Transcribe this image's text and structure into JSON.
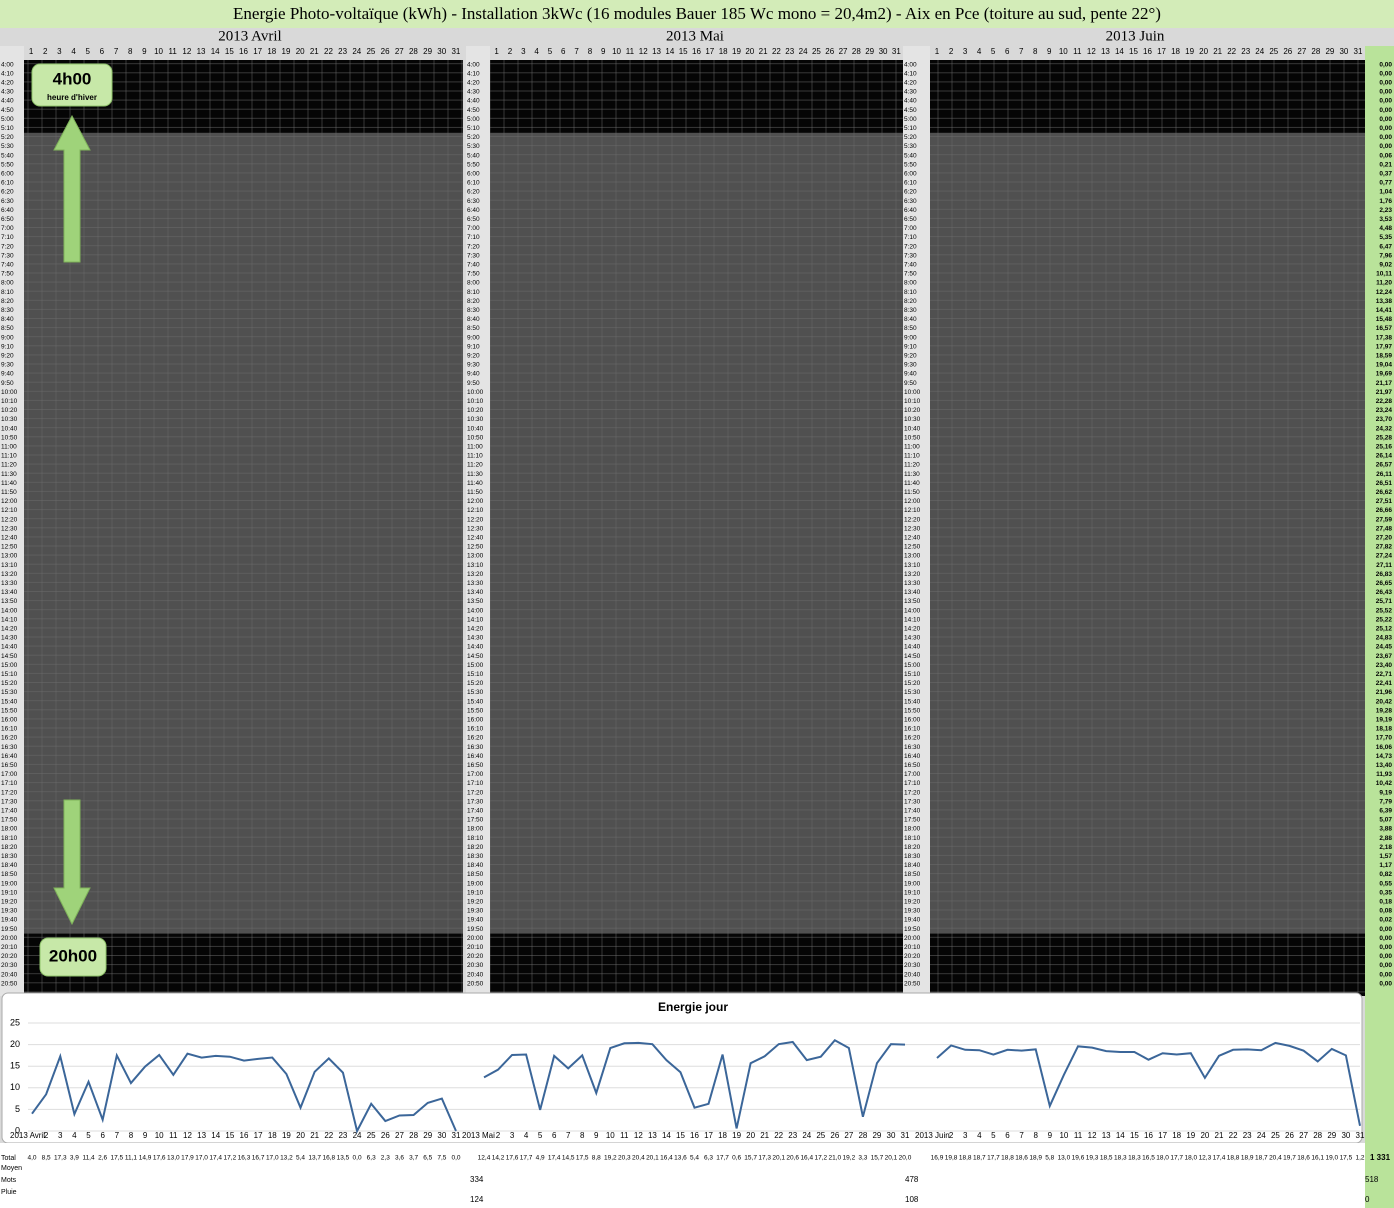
{
  "header": {
    "title": "Energie Photo-voltaïque (kWh) - Installation 3kWc (16 modules Bauer 185 Wc mono = 20,4m2) - Aix en Pce (toiture au sud, pente 22°)"
  },
  "grid": {
    "months": [
      "2013 Avril",
      "2013 Mai",
      "2013 Juin"
    ],
    "days": [
      1,
      2,
      3,
      4,
      5,
      6,
      7,
      8,
      9,
      10,
      11,
      12,
      13,
      14,
      15,
      16,
      17,
      18,
      19,
      20,
      21,
      22,
      23,
      24,
      25,
      26,
      27,
      28,
      29,
      30,
      31
    ],
    "times": [
      "4:00",
      "4:10",
      "4:20",
      "4:30",
      "4:40",
      "4:50",
      "5:00",
      "5:10",
      "5:20",
      "5:30",
      "5:40",
      "5:50",
      "6:00",
      "6:10",
      "6:20",
      "6:30",
      "6:40",
      "6:50",
      "7:00",
      "7:10",
      "7:20",
      "7:30",
      "7:40",
      "7:50",
      "8:00",
      "8:10",
      "8:20",
      "8:30",
      "8:40",
      "8:50",
      "9:00",
      "9:10",
      "9:20",
      "9:30",
      "9:40",
      "9:50",
      "10:00",
      "10:10",
      "10:20",
      "10:30",
      "10:40",
      "10:50",
      "11:00",
      "11:10",
      "11:20",
      "11:30",
      "11:40",
      "11:50",
      "12:00",
      "12:10",
      "12:20",
      "12:30",
      "12:40",
      "12:50",
      "13:00",
      "13:10",
      "13:20",
      "13:30",
      "13:40",
      "13:50",
      "14:00",
      "14:10",
      "14:20",
      "14:30",
      "14:40",
      "14:50",
      "15:00",
      "15:10",
      "15:20",
      "15:30",
      "15:40",
      "15:50",
      "16:00",
      "16:10",
      "16:20",
      "16:30",
      "16:40",
      "16:50",
      "17:00",
      "17:10",
      "17:20",
      "17:30",
      "17:40",
      "17:50",
      "18:00",
      "18:10",
      "18:20",
      "18:30",
      "18:40",
      "18:50",
      "19:00",
      "19:10",
      "19:20",
      "19:30",
      "19:40",
      "19:50",
      "20:00",
      "20:10",
      "20:20",
      "20:30",
      "20:40",
      "20:50"
    ],
    "totals": [
      "0,00",
      "0,00",
      "0,00",
      "0,00",
      "0,00",
      "0,00",
      "0,00",
      "0,00",
      "0,00",
      "0,00",
      "0,06",
      "0,21",
      "0,37",
      "0,77",
      "1,04",
      "1,76",
      "2,23",
      "3,53",
      "4,48",
      "5,35",
      "6,47",
      "7,96",
      "9,02",
      "10,11",
      "11,20",
      "12,24",
      "13,38",
      "14,41",
      "15,48",
      "16,57",
      "17,38",
      "17,97",
      "18,59",
      "19,04",
      "19,69",
      "21,17",
      "21,97",
      "22,28",
      "23,24",
      "23,70",
      "24,32",
      "25,28",
      "25,16",
      "26,14",
      "26,57",
      "26,11",
      "26,51",
      "26,62",
      "27,51",
      "26,66",
      "27,59",
      "27,48",
      "27,20",
      "27,82",
      "27,24",
      "27,11",
      "26,83",
      "26,65",
      "26,43",
      "25,71",
      "25,52",
      "25,22",
      "25,12",
      "24,83",
      "24,45",
      "23,67",
      "23,40",
      "22,71",
      "22,41",
      "21,96",
      "20,42",
      "19,28",
      "19,19",
      "18,18",
      "17,70",
      "16,06",
      "14,73",
      "13,40",
      "11,93",
      "10,42",
      "9,19",
      "7,79",
      "6,39",
      "5,07",
      "3,88",
      "2,88",
      "2,18",
      "1,57",
      "1,17",
      "0,82",
      "0,55",
      "0,35",
      "0,18",
      "0,08",
      "0,02",
      "0,00",
      "0,00",
      "0,00",
      "0,00",
      "0,00",
      "0,00",
      "0,00"
    ]
  },
  "annotations": {
    "start": "4h00",
    "start_note": "heure d'hiver",
    "end": "20h00"
  },
  "chart_data": {
    "type": "line",
    "title": "Energie jour",
    "ylim": [
      0,
      25
    ],
    "yticks": [
      0,
      5,
      10,
      15,
      20,
      25
    ],
    "series": [
      {
        "name": "2013 Avril",
        "color": "#3b6699",
        "values": [
          4.0,
          8.5,
          17.3,
          3.9,
          11.4,
          2.6,
          17.5,
          11.1,
          14.9,
          17.6,
          13.0,
          17.9,
          17.0,
          17.4,
          17.2,
          16.3,
          16.7,
          17.0,
          13.2,
          5.4,
          13.7,
          16.8,
          13.5,
          0.0,
          6.3,
          2.3,
          3.6,
          3.7,
          6.5,
          7.5,
          0.0
        ],
        "value_labels": [
          "4,0",
          "8,5",
          "17,3",
          "3,9",
          "11,4",
          "2,6",
          "17,5",
          "11,1",
          "14,9",
          "17,6",
          "13,0",
          "17,9",
          "17,0",
          "17,4",
          "17,2",
          "16,3",
          "16,7",
          "17,0",
          "13,2",
          "5,4",
          "13,7",
          "16,8",
          "13,5",
          "0,0",
          "6,3",
          "2,3",
          "3,6",
          "3,7",
          "6,5",
          "7,5",
          "0,0"
        ]
      },
      {
        "name": "2013 Mai",
        "color": "#3b6699",
        "values": [
          12.4,
          14.2,
          17.6,
          17.7,
          4.9,
          17.4,
          14.5,
          17.5,
          8.8,
          19.2,
          20.3,
          20.4,
          20.1,
          16.4,
          13.6,
          5.4,
          6.3,
          17.7,
          0.6,
          15.7,
          17.3,
          20.1,
          20.6,
          16.4,
          17.2,
          21.0,
          19.2,
          3.3,
          15.7,
          20.1,
          20.0
        ],
        "value_labels": [
          "12,4",
          "14,2",
          "17,6",
          "17,7",
          "4,9",
          "17,4",
          "14,5",
          "17,5",
          "8,8",
          "19,2",
          "20,3",
          "20,4",
          "20,1",
          "16,4",
          "13,6",
          "5,4",
          "6,3",
          "17,7",
          "0,6",
          "15,7",
          "17,3",
          "20,1",
          "20,6",
          "16,4",
          "17,2",
          "21,0",
          "19,2",
          "3,3",
          "15,7",
          "20,1",
          "20,0"
        ]
      },
      {
        "name": "2013 Juin",
        "color": "#3b6699",
        "values": [
          16.9,
          19.8,
          18.8,
          18.7,
          17.7,
          18.8,
          18.6,
          18.9,
          5.8,
          13.0,
          19.6,
          19.3,
          18.5,
          18.3,
          18.3,
          16.5,
          18.0,
          17.7,
          18.0,
          12.3,
          17.4,
          18.8,
          18.9,
          18.7,
          20.4,
          19.7,
          18.6,
          16.1,
          19.0,
          17.5,
          1.2
        ],
        "value_labels": [
          "16,9",
          "19,8",
          "18,8",
          "18,7",
          "17,7",
          "18,8",
          "18,6",
          "18,9",
          "5,8",
          "13,0",
          "19,6",
          "19,3",
          "18,5",
          "18,3",
          "18,3",
          "16,5",
          "18,0",
          "17,7",
          "18,0",
          "12,3",
          "17,4",
          "18,8",
          "18,9",
          "18,7",
          "20,4",
          "19,7",
          "18,6",
          "16,1",
          "19,0",
          "17,5",
          "1,2"
        ]
      }
    ]
  },
  "summary": {
    "row_labels": [
      "Total",
      "Moyen",
      "Mots",
      "Pluie"
    ],
    "mots": [
      334,
      478,
      518
    ],
    "pluie": [
      124,
      108,
      0
    ],
    "grand_total": "1 331"
  }
}
